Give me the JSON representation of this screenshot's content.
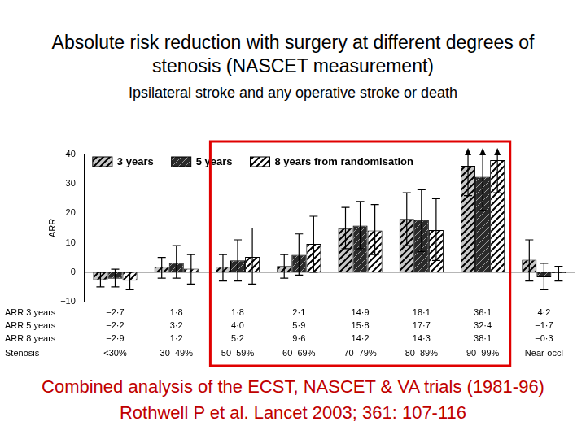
{
  "chart_data": {
    "type": "bar",
    "title": "Absolute risk reduction with surgery at different degrees of stenosis (NASCET measurement)",
    "subtitle": "Ipsilateral stroke and any operative stroke or death",
    "caption": "Combined analysis of the ECST, NASCET & VA trials (1981-96) Rothwell P et al. Lancet 2003; 361: 107-116",
    "y_label": "ARR",
    "x_label": "Stenosis",
    "categories": [
      "<30%",
      "30–49%",
      "50–59%",
      "60–69%",
      "70–79%",
      "80–89%",
      "90–99%",
      "Near-occl"
    ],
    "series": [
      {
        "name": "3 years",
        "row_label": "ARR 3 years",
        "color": "#c8c8c8",
        "values": [
          -2.7,
          1.8,
          1.8,
          2.1,
          14.9,
          18.1,
          36.1,
          4.2
        ],
        "value_labels": [
          "−2·7",
          "1·8",
          "1·8",
          "2·1",
          "14·9",
          "18·1",
          "36·1",
          "4·2"
        ],
        "error_low": [
          -5,
          -2,
          -3,
          -2,
          8,
          9,
          26,
          -3
        ],
        "error_high": [
          0,
          5,
          6,
          6,
          22,
          27,
          46,
          11
        ]
      },
      {
        "name": "5 years",
        "row_label": "ARR 5 years",
        "color": "#2a2a2a",
        "values": [
          -2.2,
          3.2,
          4.0,
          5.9,
          15.8,
          17.7,
          32.4,
          -1.7
        ],
        "value_labels": [
          "−2·2",
          "3·2",
          "4·0",
          "5·9",
          "15·8",
          "17·7",
          "32·4",
          "−1·7"
        ],
        "error_low": [
          -5,
          -2,
          -3,
          -1,
          8,
          7,
          21,
          -6
        ],
        "error_high": [
          1,
          9,
          11,
          13,
          24,
          28,
          44,
          3
        ]
      },
      {
        "name": "8 years from randomisation",
        "row_label": "ARR 8 years",
        "color": "#ffffff",
        "values": [
          -2.9,
          1.2,
          5.2,
          9.6,
          14.2,
          14.3,
          38.1,
          -0.3
        ],
        "value_labels": [
          "−2·9",
          "1·2",
          "5·2",
          "9·6",
          "14·2",
          "14·3",
          "38·1",
          "−0·3"
        ],
        "error_low": [
          -6,
          -4,
          -4,
          0,
          6,
          4,
          27,
          -3
        ],
        "error_high": [
          0,
          6,
          15,
          19,
          23,
          25,
          49,
          2
        ]
      }
    ],
    "ylim": [
      -10,
      40
    ],
    "yticks": [
      {
        "value": -10,
        "label": "−10"
      },
      0,
      10,
      20,
      30,
      40
    ],
    "grid": false,
    "legend": "upper left"
  }
}
